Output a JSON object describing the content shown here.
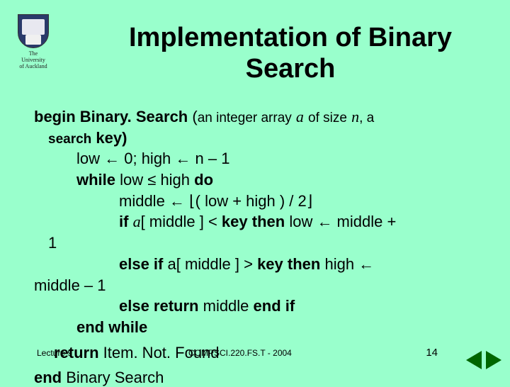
{
  "logo": {
    "line1": "The",
    "line2": "University",
    "line3": "of Auckland"
  },
  "title": "Implementation of Binary Search",
  "algo": {
    "begin": "begin",
    "name": "Binary. Search",
    "open": "(",
    "an_integer_array": "an integer array",
    "a": "a",
    "of_size": "of size",
    "n": "n",
    "comma_a": ", a",
    "search": "search",
    "key_close": " key)",
    "low_assign": "low ← 0;   high ← n – 1",
    "while": "while",
    "while_cond": " low ≤ high ",
    "do": "do",
    "middle_assign_pre": "middle ← ",
    "floor_l": "⌊",
    "middle_expr": "( low + high ) / 2",
    "floor_r": "⌋",
    "if": "if",
    "a_it": "a",
    "idx": "[ middle ] < ",
    "key": "key",
    "then": "  then",
    "low_to": "  low  ←  middle +",
    "one": "1",
    "elseif": "else if",
    "cond2": " a[ middle ] > ",
    "then2": "then",
    "high_to": "  high  ←",
    "mid_m1": "middle – 1",
    "else_return": "else return",
    "mid_endif": "  middle ",
    "endif": "end if",
    "endwhile": "end while",
    "return": "return",
    "notfound": " Item. Not. Found",
    "end_cut": "end",
    "end_cut2": " Binary Search"
  },
  "footer": {
    "lecture": "Lecture 9",
    "course": "COMPSCI.220.FS.T - 2004",
    "page": "14"
  }
}
